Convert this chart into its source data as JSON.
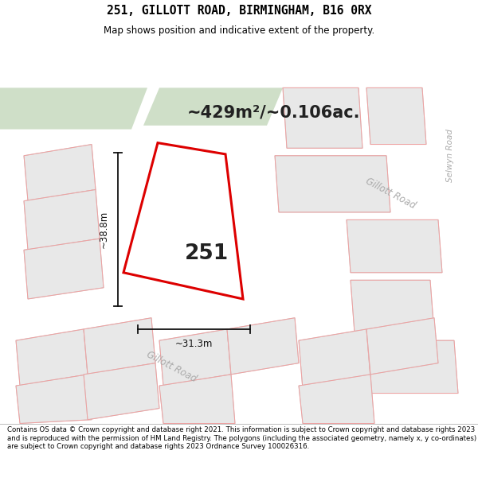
{
  "title": "251, GILLOTT ROAD, BIRMINGHAM, B16 0RX",
  "subtitle": "Map shows position and indicative extent of the property.",
  "area_text": "~429m²/~0.106ac.",
  "property_number": "251",
  "width_label": "~31.3m",
  "height_label": "~38.8m",
  "footer": "Contains OS data © Crown copyright and database right 2021. This information is subject to Crown copyright and database rights 2023 and is reproduced with the permission of HM Land Registry. The polygons (including the associated geometry, namely x, y co-ordinates) are subject to Crown copyright and database rights 2023 Ordnance Survey 100026316.",
  "bg_color": "#f2f0ee",
  "map_bg": "#f2f0ee",
  "road_color": "#ffffff",
  "green_strip_color": "#cfdfc8",
  "property_fill": "#ffffff",
  "property_edge": "#dd0000",
  "plot_fill": "#e8e8e8",
  "plot_edge": "#f0a0a0",
  "plot_edge_gray": "#cccccc",
  "road_text_color": "#aaaaaa",
  "ann_color": "#111111",
  "figsize": [
    6.0,
    6.25
  ],
  "dpi": 100
}
